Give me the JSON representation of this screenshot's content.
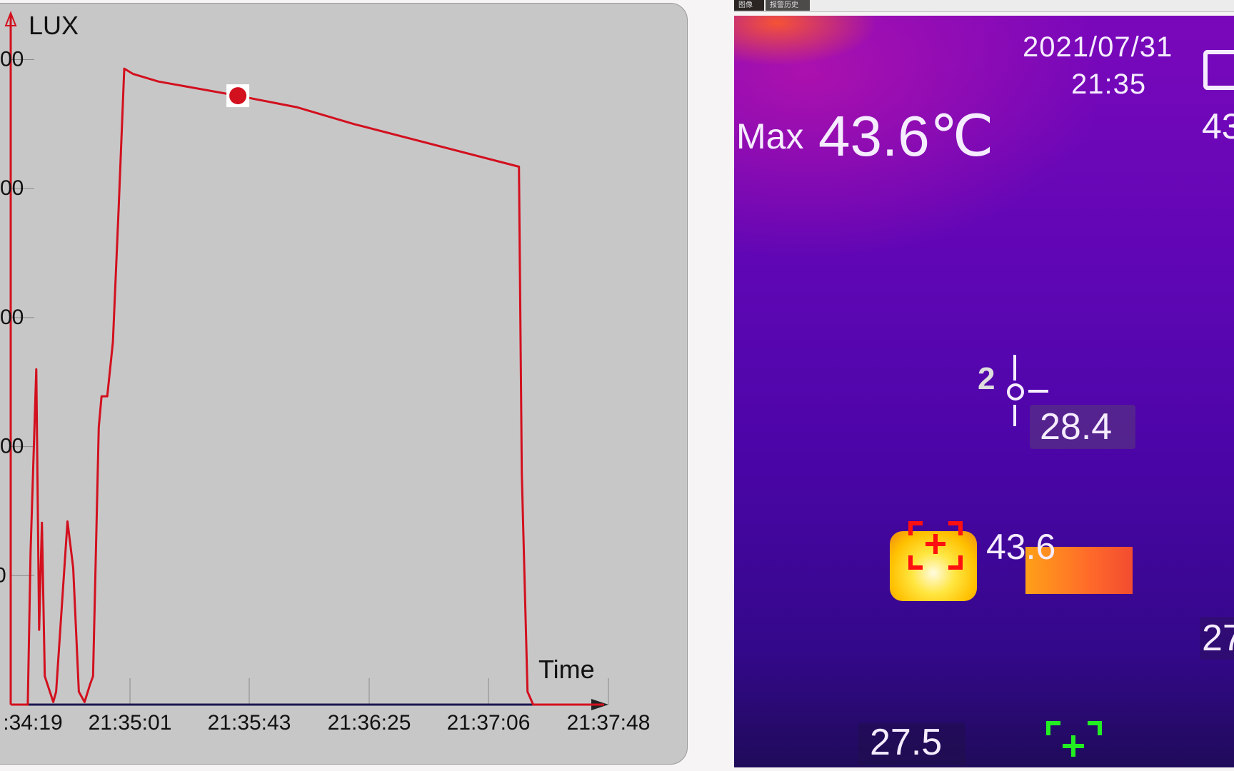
{
  "chart_data": {
    "type": "line",
    "ylabel": "LUX",
    "xlabel": "Time",
    "y_tick_labels": [
      "00",
      "00",
      "00",
      "00",
      "0"
    ],
    "y_tick_levels": [
      5,
      4,
      3,
      2,
      1
    ],
    "ylim": [
      0,
      5
    ],
    "x_tick_labels": [
      ":34:19",
      "21:35:01",
      "21:35:43",
      "21:36:25",
      "21:37:06",
      "21:37:48"
    ],
    "xlim": [
      "21:34:19",
      "21:37:48"
    ],
    "grid": false,
    "line_color": "#d2101e",
    "marker_color": "#d2101e",
    "series": [
      {
        "x": [
          "21:34:19",
          "21:34:25",
          "21:34:26",
          "21:34:28",
          "21:34:29",
          "21:34:30",
          "21:34:31",
          "21:34:34",
          "21:34:35",
          "21:34:39",
          "21:34:41",
          "21:34:43",
          "21:34:45",
          "21:34:47",
          "21:34:48",
          "21:34:50",
          "21:34:51",
          "21:34:53",
          "21:34:55",
          "21:34:57",
          "21:34:59",
          "21:35:02",
          "21:35:11",
          "21:35:39",
          "21:36:00",
          "21:36:20",
          "21:37:18",
          "21:37:19",
          "21:37:21",
          "21:37:23",
          "21:37:48"
        ],
        "y": [
          0,
          0,
          1.18,
          2.6,
          0.58,
          1.41,
          0.22,
          0.02,
          0.1,
          1.42,
          1.06,
          0.1,
          0.02,
          0.16,
          0.22,
          2.15,
          2.39,
          2.39,
          2.81,
          3.84,
          4.93,
          4.89,
          4.83,
          4.72,
          4.63,
          4.5,
          4.17,
          1.79,
          0.1,
          0,
          0
        ]
      }
    ],
    "highlight_point": {
      "x": "21:35:39",
      "y": 4.72
    }
  },
  "thermal": {
    "tabs": [
      "图像",
      "报警历史"
    ],
    "date": "2021/07/31",
    "time": "21:35",
    "max_label": "Max",
    "max_value": "43.6℃",
    "right_top_cut": "43",
    "center_value": "28.4",
    "center_marker_char": "2",
    "hot_value": "43.6",
    "right_cut_value": "27",
    "cold_value": "27.5",
    "hot_marker_color": "#ff1010",
    "cold_marker_color": "#22ee22"
  }
}
